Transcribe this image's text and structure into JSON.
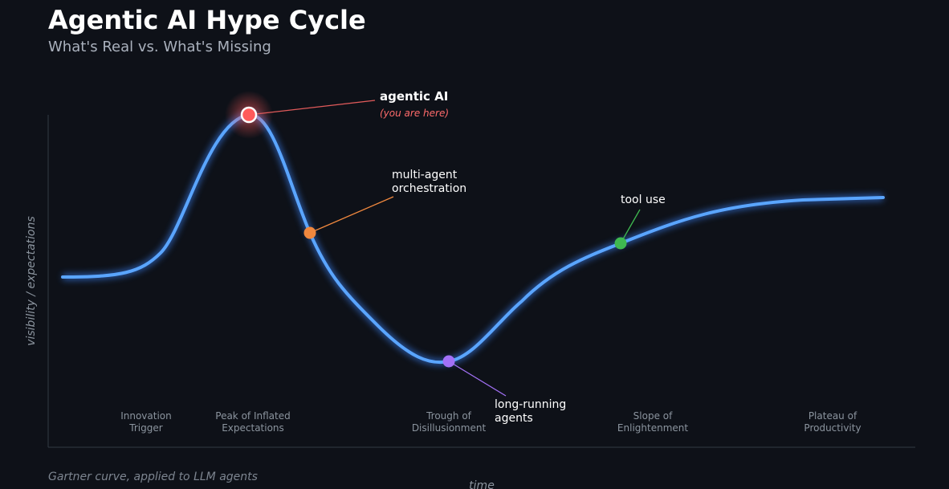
{
  "header": {
    "title": "Agentic AI Hype Cycle",
    "subtitle": "What's Real vs. What's Missing"
  },
  "axes": {
    "y_label": "visibility / expectations",
    "x_label": "time"
  },
  "phases": [
    [
      "Innovation",
      "Trigger"
    ],
    [
      "Peak of Inflated",
      "Expectations"
    ],
    [
      "Trough of",
      "Disillusionment"
    ],
    [
      "Slope of",
      "Enlightenment"
    ],
    [
      "Plateau of",
      "Productivity"
    ]
  ],
  "annotations": {
    "peak": {
      "label": "agentic AI",
      "note": "(you are here)"
    },
    "descent": {
      "label": [
        "multi-agent",
        "orchestration"
      ]
    },
    "trough": {
      "label": [
        "long-running",
        "agents"
      ]
    },
    "slope": {
      "label": "tool use"
    }
  },
  "footer": "Gartner curve, applied to LLM agents"
}
